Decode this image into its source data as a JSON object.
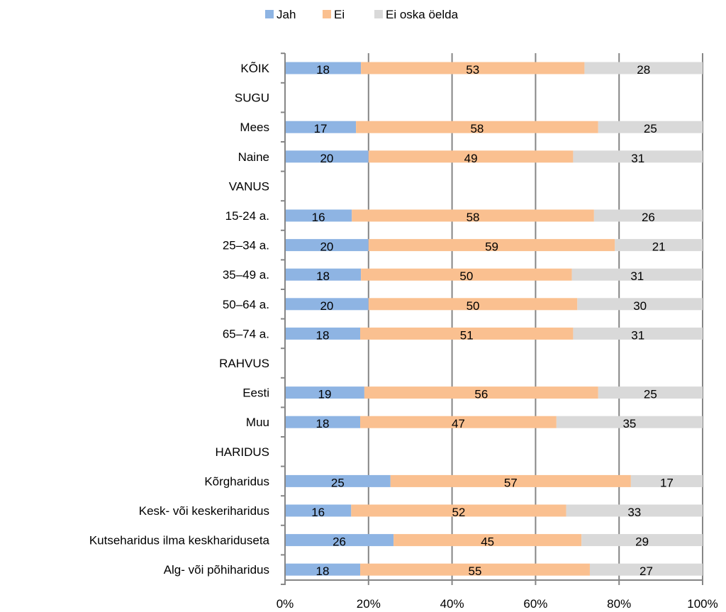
{
  "chart_data": {
    "type": "bar",
    "orientation": "horizontal",
    "stacked": "percent",
    "title": "",
    "xlabel": "",
    "ylabel": "",
    "xlim": [
      0,
      100
    ],
    "x_ticks": [
      "0%",
      "20%",
      "40%",
      "60%",
      "80%",
      "100%"
    ],
    "grid": "vertical",
    "legend_position": "top-center",
    "categories": [
      "KÕIK",
      "SUGU",
      "Mees",
      "Naine",
      "VANUS",
      "15-24 a.",
      "25–34 a.",
      "35–49 a.",
      "50–64 a.",
      "65–74 a.",
      "RAHVUS",
      "Eesti",
      "Muu",
      "HARIDUS",
      "Kõrgharidus",
      "Kesk- või keskeriharidus",
      "Kutseharidus ilma keskhariduseta",
      "Alg- või põhiharidus"
    ],
    "series": [
      {
        "name": "Jah",
        "color": "#8eb4e3",
        "values": [
          18,
          null,
          17,
          20,
          null,
          16,
          20,
          18,
          20,
          18,
          null,
          19,
          18,
          null,
          25,
          16,
          26,
          18
        ]
      },
      {
        "name": "Ei",
        "color": "#fac090",
        "values": [
          53,
          null,
          58,
          49,
          null,
          58,
          59,
          50,
          50,
          51,
          null,
          56,
          47,
          null,
          57,
          52,
          45,
          55
        ]
      },
      {
        "name": "Ei oska öelda",
        "color": "#d9d9d9",
        "values": [
          28,
          null,
          25,
          31,
          null,
          26,
          21,
          31,
          30,
          31,
          null,
          25,
          35,
          null,
          17,
          33,
          29,
          27
        ]
      }
    ]
  }
}
